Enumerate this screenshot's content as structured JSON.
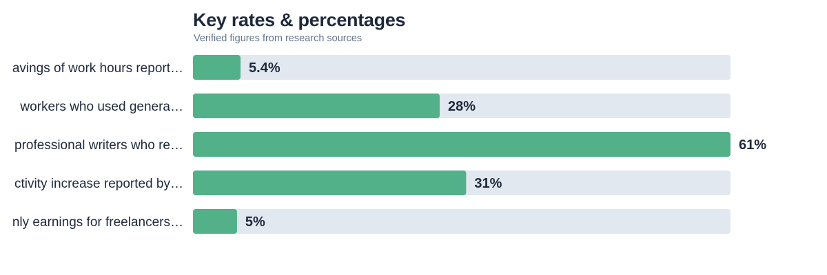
{
  "chart_data": {
    "type": "bar",
    "orientation": "horizontal",
    "title": "Key rates & percentages",
    "subtitle": "Verified figures from research sources",
    "categories": [
      "…avings of work hours report…",
      "…workers who used genera…",
      "…professional writers who re…",
      "…ctivity increase reported by…",
      "…nly earnings for freelancers…"
    ],
    "values": [
      5.4,
      28,
      61,
      31,
      5
    ],
    "value_labels": [
      "5.4%",
      "28%",
      "61%",
      "31%",
      "5%"
    ],
    "unit": "%",
    "xlim": [
      0,
      61
    ],
    "grid": false,
    "legend": "none"
  },
  "colors": {
    "bar": "#52b188",
    "track": "#e2e8f0",
    "title": "#1e293b",
    "subtitle": "#64748b",
    "text": "#1e293b"
  }
}
